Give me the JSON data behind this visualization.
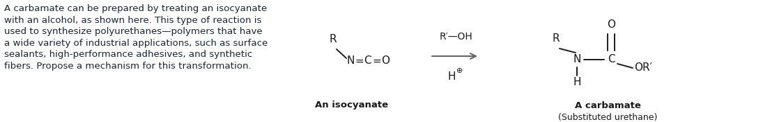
{
  "background_color": "#ffffff",
  "paragraph_text": "A carbamate can be prepared by treating an isocyanate\nwith an alcohol, as shown here. This type of reaction is\nused to synthesize polyurethanes—polymers that have\na wide variety of industrial applications, such as surface\nsealants, high-performance adhesives, and synthetic\nfibers. Propose a mechanism for this transformation.",
  "text_color": "#1a2533",
  "chem_color": "#1a1a1a",
  "arrow_color": "#666666",
  "label_isocyanate": "An isocyanate",
  "label_carbamate": "A carbamate",
  "label_urethane": "(Substituted urethane)",
  "fig_width": 10.95,
  "fig_height": 1.76,
  "dpi": 100
}
